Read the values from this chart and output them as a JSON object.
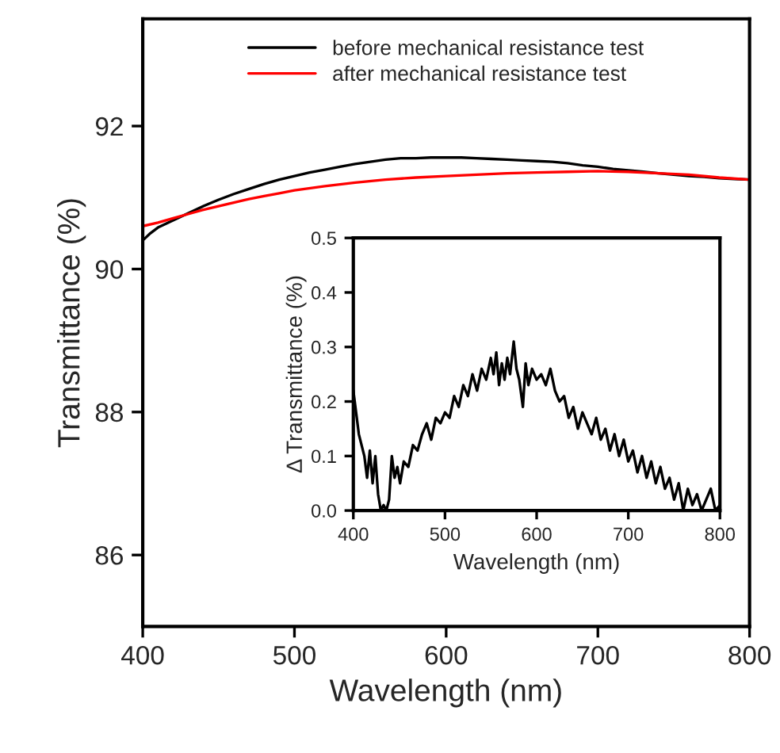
{
  "chart_data": [
    {
      "type": "line",
      "xlabel": "Wavelength (nm)",
      "ylabel": "Transmittance (%)",
      "xlim": [
        400,
        800
      ],
      "ylim": [
        85,
        93.5
      ],
      "xticks": [
        400,
        500,
        600,
        700,
        800
      ],
      "yticks": [
        86,
        88,
        90,
        92
      ],
      "legend": "top",
      "grid": false,
      "tick_labels": "xy",
      "series": [
        {
          "name": "before mechanical resistance test",
          "color": "#000000",
          "x": [
            400,
            405,
            410,
            420,
            430,
            440,
            450,
            460,
            470,
            480,
            490,
            500,
            510,
            520,
            530,
            540,
            550,
            560,
            570,
            580,
            590,
            600,
            610,
            620,
            630,
            640,
            650,
            660,
            670,
            680,
            690,
            700,
            710,
            720,
            730,
            740,
            750,
            760,
            770,
            780,
            790,
            800
          ],
          "values": [
            90.4,
            90.5,
            90.58,
            90.68,
            90.78,
            90.88,
            90.97,
            91.05,
            91.12,
            91.19,
            91.25,
            91.3,
            91.35,
            91.39,
            91.43,
            91.47,
            91.5,
            91.53,
            91.55,
            91.55,
            91.56,
            91.56,
            91.56,
            91.55,
            91.54,
            91.53,
            91.52,
            91.51,
            91.5,
            91.48,
            91.45,
            91.43,
            91.4,
            91.38,
            91.36,
            91.34,
            91.32,
            91.3,
            91.29,
            91.27,
            91.26,
            91.25
          ]
        },
        {
          "name": "after mechanical resistance test",
          "color": "#ff0000",
          "x": [
            400,
            410,
            420,
            430,
            440,
            450,
            460,
            470,
            480,
            490,
            500,
            520,
            540,
            560,
            580,
            600,
            620,
            640,
            660,
            680,
            700,
            720,
            740,
            760,
            780,
            800
          ],
          "values": [
            90.6,
            90.65,
            90.71,
            90.77,
            90.83,
            90.88,
            90.93,
            90.98,
            91.02,
            91.06,
            91.1,
            91.16,
            91.21,
            91.25,
            91.28,
            91.3,
            91.32,
            91.34,
            91.35,
            91.36,
            91.37,
            91.36,
            91.34,
            91.32,
            91.28,
            91.25
          ]
        }
      ]
    },
    {
      "type": "line",
      "xlabel": "Wavelength (nm)",
      "ylabel": "Δ Transmittance (%)",
      "xlim": [
        400,
        800
      ],
      "ylim": [
        0,
        0.5
      ],
      "xticks": [
        400,
        500,
        600,
        700,
        800
      ],
      "yticks": [
        {
          "value": 0,
          "label": "0.0"
        },
        0.1,
        0.2,
        0.3,
        0.4,
        0.5
      ],
      "grid": false,
      "legend": false,
      "series": [
        {
          "color": "#000000",
          "x": [
            400,
            403,
            406,
            409,
            412,
            415,
            418,
            421,
            424,
            427,
            430,
            433,
            436,
            439,
            442,
            445,
            448,
            451,
            455,
            460,
            465,
            470,
            475,
            480,
            485,
            490,
            495,
            500,
            505,
            510,
            515,
            520,
            525,
            530,
            535,
            540,
            545,
            550,
            553,
            556,
            559,
            562,
            565,
            568,
            571,
            575,
            578,
            581,
            585,
            588,
            591,
            595,
            600,
            605,
            610,
            615,
            620,
            625,
            630,
            635,
            640,
            645,
            650,
            655,
            660,
            665,
            670,
            675,
            680,
            685,
            690,
            695,
            700,
            705,
            710,
            715,
            720,
            725,
            730,
            735,
            740,
            745,
            750,
            755,
            760,
            765,
            770,
            775,
            780,
            785,
            790,
            795,
            800
          ],
          "values": [
            0.22,
            0.18,
            0.14,
            0.12,
            0.1,
            0.06,
            0.11,
            0.05,
            0.1,
            0.03,
            0.0,
            0.01,
            0.0,
            0.02,
            0.1,
            0.06,
            0.08,
            0.05,
            0.09,
            0.08,
            0.12,
            0.11,
            0.14,
            0.16,
            0.13,
            0.17,
            0.16,
            0.18,
            0.17,
            0.21,
            0.19,
            0.23,
            0.21,
            0.25,
            0.22,
            0.26,
            0.24,
            0.28,
            0.25,
            0.29,
            0.23,
            0.27,
            0.24,
            0.28,
            0.25,
            0.31,
            0.26,
            0.24,
            0.19,
            0.27,
            0.23,
            0.26,
            0.24,
            0.25,
            0.23,
            0.26,
            0.22,
            0.2,
            0.21,
            0.17,
            0.19,
            0.15,
            0.18,
            0.16,
            0.14,
            0.17,
            0.13,
            0.15,
            0.11,
            0.14,
            0.1,
            0.13,
            0.09,
            0.11,
            0.07,
            0.1,
            0.06,
            0.09,
            0.05,
            0.08,
            0.04,
            0.06,
            0.02,
            0.05,
            0.0,
            0.04,
            0.01,
            0.03,
            0.0,
            0.02,
            0.04,
            0.0,
            0.01
          ]
        }
      ]
    }
  ]
}
